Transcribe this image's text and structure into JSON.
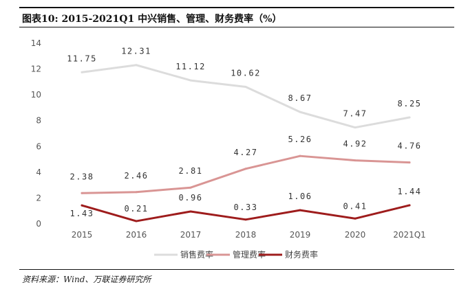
{
  "header": {
    "title": "图表10: 2015-2021Q1 中兴销售、管理、财务费率（%）"
  },
  "footer": {
    "source": "资料来源：Wind、万联证券研究所"
  },
  "chart_data": {
    "type": "line",
    "categories": [
      "2015",
      "2016",
      "2017",
      "2018",
      "2019",
      "2020",
      "2021Q1"
    ],
    "ylim": [
      0,
      14
    ],
    "yticks": [
      0,
      2,
      4,
      6,
      8,
      10,
      12,
      14
    ],
    "grid": false,
    "legend": "bottom",
    "series": [
      {
        "name": "销售费率",
        "color": "#dcdcdc",
        "values": [
          11.75,
          12.31,
          11.12,
          10.62,
          8.67,
          7.47,
          8.25
        ],
        "labels": [
          "11.75",
          "12.31",
          "11.12",
          "10.62",
          "8.67",
          "7.47",
          "8.25"
        ]
      },
      {
        "name": "管理费率",
        "color": "#d99594",
        "values": [
          2.38,
          2.46,
          2.81,
          4.27,
          5.26,
          4.92,
          4.76
        ],
        "labels": [
          "2.38",
          "2.46",
          "2.81",
          "4.27",
          "5.26",
          "4.92",
          "4.76"
        ]
      },
      {
        "name": "财务费率",
        "color": "#9e1c1c",
        "values": [
          1.43,
          0.21,
          0.96,
          0.33,
          1.06,
          0.41,
          1.44
        ],
        "labels": [
          "1.43",
          "0.21",
          "0.96",
          "0.33",
          "1.06",
          "0.41",
          "1.44"
        ]
      }
    ]
  }
}
